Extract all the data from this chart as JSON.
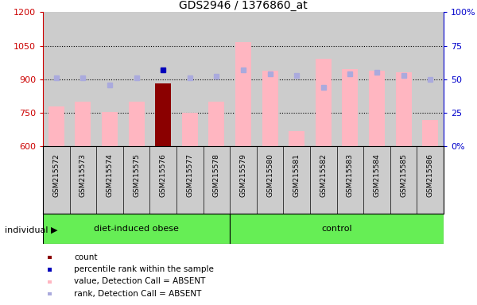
{
  "title": "GDS2946 / 1376860_at",
  "samples": [
    "GSM215572",
    "GSM215573",
    "GSM215574",
    "GSM215575",
    "GSM215576",
    "GSM215577",
    "GSM215578",
    "GSM215579",
    "GSM215580",
    "GSM215581",
    "GSM215582",
    "GSM215583",
    "GSM215584",
    "GSM215585",
    "GSM215586"
  ],
  "value_bars": [
    780,
    800,
    755,
    800,
    880,
    750,
    800,
    1065,
    940,
    670,
    990,
    945,
    940,
    930,
    720
  ],
  "rank_dots_pct": [
    51,
    51,
    46,
    51,
    57,
    51,
    52,
    57,
    54,
    53,
    44,
    54,
    55,
    53,
    50
  ],
  "is_dark_bar": [
    false,
    false,
    false,
    false,
    true,
    false,
    false,
    false,
    false,
    false,
    false,
    false,
    false,
    false,
    false
  ],
  "has_dark_rank_dot": [
    false,
    false,
    false,
    false,
    true,
    false,
    false,
    false,
    false,
    false,
    false,
    false,
    false,
    false,
    false
  ],
  "group_boundary": 7,
  "ylim_left": [
    600,
    1200
  ],
  "ylim_right": [
    0,
    100
  ],
  "yticks_left": [
    600,
    750,
    900,
    1050,
    1200
  ],
  "yticks_right": [
    0,
    25,
    50,
    75,
    100
  ],
  "bar_color_absent": "#FFB6C1",
  "bar_color_dark": "#8B0000",
  "rank_dot_color_absent": "#AAAADD",
  "rank_dot_color_dark": "#0000BB",
  "group_colors": [
    "#66EE55",
    "#66EE55"
  ],
  "group_labels": [
    "diet-induced obese",
    "control"
  ],
  "left_axis_color": "#CC0000",
  "right_axis_color": "#0000CC",
  "bg_color": "#CCCCCC",
  "legend_items": [
    {
      "color": "#8B0000",
      "label": "count"
    },
    {
      "color": "#0000BB",
      "label": "percentile rank within the sample"
    },
    {
      "color": "#FFB6C1",
      "label": "value, Detection Call = ABSENT"
    },
    {
      "color": "#AAAADD",
      "label": "rank, Detection Call = ABSENT"
    }
  ]
}
